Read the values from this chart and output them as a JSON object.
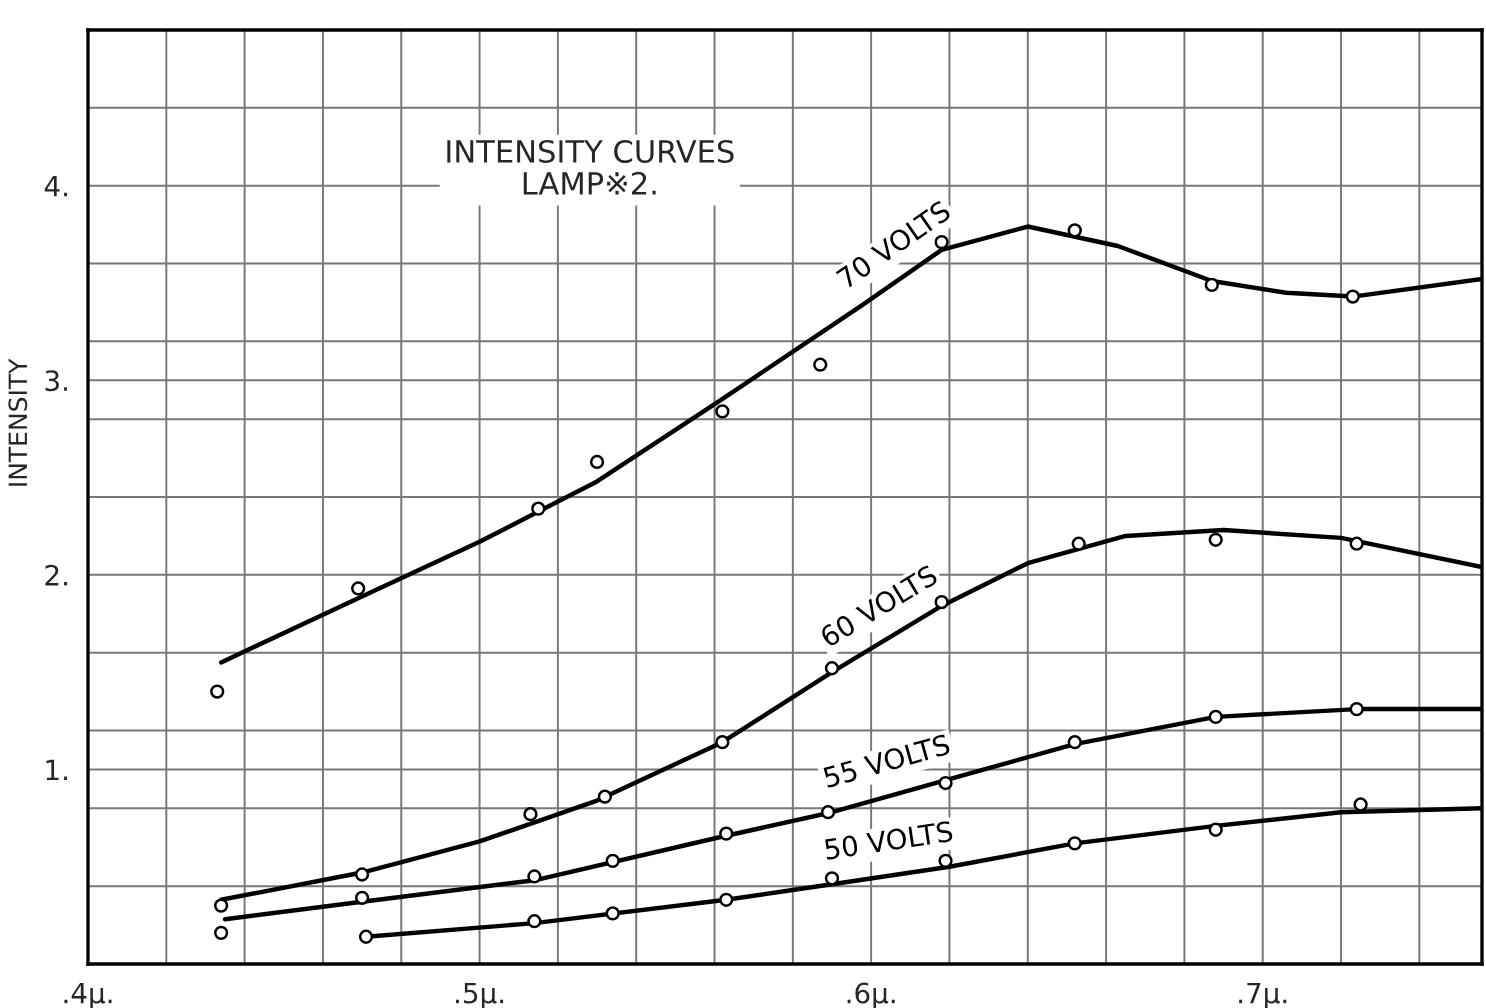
{
  "chart_data": {
    "type": "line",
    "title": "INTENSITY CURVES\nLAMP※2.",
    "ylabel": "INTENSITY",
    "xlim": [
      0.4,
      0.756
    ],
    "ylim": [
      0,
      4.8
    ],
    "xticks": [
      {
        "value": 0.4,
        "label": ".4μ."
      },
      {
        "value": 0.42,
        "label": null
      },
      {
        "value": 0.44,
        "label": null
      },
      {
        "value": 0.46,
        "label": null
      },
      {
        "value": 0.48,
        "label": null
      },
      {
        "value": 0.5,
        "label": ".5μ."
      },
      {
        "value": 0.52,
        "label": null
      },
      {
        "value": 0.54,
        "label": null
      },
      {
        "value": 0.56,
        "label": null
      },
      {
        "value": 0.58,
        "label": null
      },
      {
        "value": 0.6,
        "label": ".6μ."
      },
      {
        "value": 0.62,
        "label": null
      },
      {
        "value": 0.64,
        "label": null
      },
      {
        "value": 0.66,
        "label": null
      },
      {
        "value": 0.68,
        "label": null
      },
      {
        "value": 0.7,
        "label": ".7μ."
      },
      {
        "value": 0.72,
        "label": null
      },
      {
        "value": 0.74,
        "label": null
      }
    ],
    "yticks": [
      {
        "value": 0.4,
        "label": null
      },
      {
        "value": 0.8,
        "label": null
      },
      {
        "value": 1,
        "label": "1."
      },
      {
        "value": 1.2,
        "label": null
      },
      {
        "value": 1.6,
        "label": null
      },
      {
        "value": 2,
        "label": "2."
      },
      {
        "value": 2.4,
        "label": null
      },
      {
        "value": 2.8,
        "label": null
      },
      {
        "value": 3,
        "label": "3."
      },
      {
        "value": 3.2,
        "label": null
      },
      {
        "value": 3.6,
        "label": null
      },
      {
        "value": 4,
        "label": "4."
      },
      {
        "value": 4.4,
        "label": null
      }
    ],
    "grid": true,
    "legend": false,
    "series": [
      {
        "name": "70 VOLTS",
        "color": "#000000",
        "marker": "none",
        "x": [
          0.434,
          0.469,
          0.5,
          0.53,
          0.561,
          0.598,
          0.618,
          0.64,
          0.663,
          0.687,
          0.706,
          0.723,
          0.756
        ],
        "values": [
          1.55,
          1.88,
          2.17,
          2.48,
          2.89,
          3.39,
          3.67,
          3.79,
          3.69,
          3.51,
          3.45,
          3.43,
          3.52
        ]
      },
      {
        "type": "scatter",
        "color": "#000000",
        "marker": "circle",
        "x": [
          0.433,
          0.469,
          0.515,
          0.53,
          0.562,
          0.587,
          0.618,
          0.652,
          0.687,
          0.723
        ],
        "values": [
          1.4,
          1.93,
          2.34,
          2.58,
          2.84,
          3.08,
          3.71,
          3.77,
          3.49,
          3.43
        ]
      },
      {
        "name": "60 VOLTS",
        "color": "#000000",
        "marker": "none",
        "x": [
          0.434,
          0.47,
          0.5,
          0.53,
          0.562,
          0.59,
          0.618,
          0.64,
          0.665,
          0.69,
          0.72,
          0.756
        ],
        "values": [
          0.33,
          0.47,
          0.63,
          0.84,
          1.14,
          1.5,
          1.84,
          2.06,
          2.2,
          2.23,
          2.19,
          2.04
        ]
      },
      {
        "type": "scatter",
        "color": "#000000",
        "marker": "circle",
        "x": [
          0.434,
          0.47,
          0.513,
          0.532,
          0.562,
          0.59,
          0.618,
          0.653,
          0.688,
          0.724
        ],
        "values": [
          0.3,
          0.46,
          0.77,
          0.86,
          1.14,
          1.52,
          1.86,
          2.16,
          2.18,
          2.16
        ]
      },
      {
        "name": "55 VOLTS",
        "color": "#000000",
        "marker": "none",
        "x": [
          0.435,
          0.47,
          0.514,
          0.561,
          0.59,
          0.62,
          0.652,
          0.688,
          0.724,
          0.756
        ],
        "values": [
          0.23,
          0.32,
          0.43,
          0.65,
          0.78,
          0.95,
          1.13,
          1.27,
          1.31,
          1.31
        ]
      },
      {
        "type": "scatter",
        "color": "#000000",
        "marker": "circle",
        "x": [
          0.434,
          0.47,
          0.514,
          0.534,
          0.563,
          0.589,
          0.619,
          0.652,
          0.688,
          0.724
        ],
        "values": [
          0.16,
          0.34,
          0.45,
          0.53,
          0.67,
          0.78,
          0.93,
          1.14,
          1.27,
          1.31
        ]
      },
      {
        "name": "50 VOLTS",
        "color": "#000000",
        "marker": "none",
        "x": [
          0.471,
          0.514,
          0.563,
          0.59,
          0.62,
          0.652,
          0.688,
          0.72,
          0.756
        ],
        "values": [
          0.14,
          0.21,
          0.33,
          0.41,
          0.5,
          0.62,
          0.71,
          0.78,
          0.8
        ]
      },
      {
        "type": "scatter",
        "color": "#000000",
        "marker": "circle",
        "x": [
          0.471,
          0.514,
          0.534,
          0.563,
          0.59,
          0.619,
          0.652,
          0.688,
          0.725
        ],
        "values": [
          0.14,
          0.22,
          0.26,
          0.33,
          0.44,
          0.53,
          0.62,
          0.69,
          0.82
        ]
      }
    ]
  }
}
